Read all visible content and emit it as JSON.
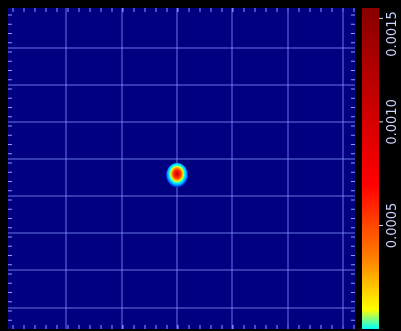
{
  "chart_data": {
    "type": "heatmap",
    "title": "",
    "xlabel": "",
    "ylabel": "",
    "background_value": 0,
    "value_range": [
      0,
      0.00155
    ],
    "colorbar": {
      "ticks": [
        {
          "value": 0.0005,
          "label": "0.0005"
        },
        {
          "value": 0.001,
          "label": "0.0010"
        },
        {
          "value": 0.0015,
          "label": "0.0015"
        }
      ],
      "colors": [
        "#00ffff",
        "#ffff00",
        "#ff8000",
        "#ff0000",
        "#880000"
      ]
    },
    "grid": true,
    "hotspot": {
      "peak_value": 0.00155,
      "colors": [
        "#000080",
        "#0040ff",
        "#00c0ff",
        "#00ffff",
        "#ffff00",
        "#ff8000",
        "#ff2000",
        "#c00000"
      ]
    }
  },
  "colors": {
    "background": "#000080",
    "grid": "#8a9cff",
    "frame": "#000000"
  }
}
